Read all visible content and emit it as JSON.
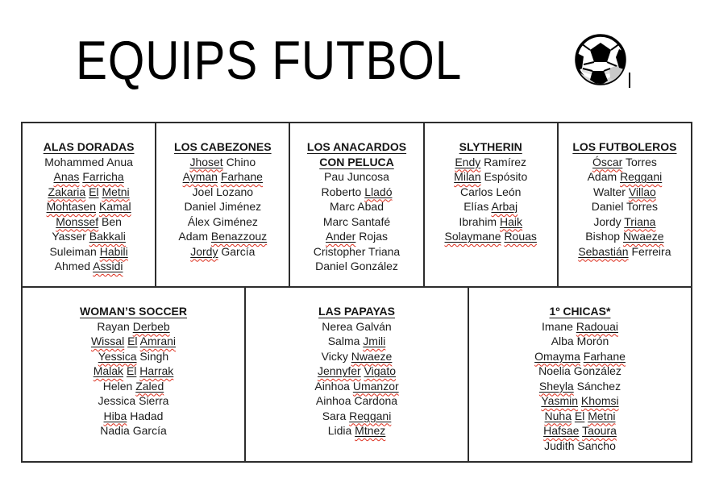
{
  "header": {
    "title": "EQUIPS FUTBOL",
    "ball_icon": "soccer-ball-icon"
  },
  "colors": {
    "text": "#1c1c1c",
    "border": "#2d2d2d",
    "underline": "#111111",
    "squiggle": "#dd2d1c",
    "ball_shading": "#cccccc"
  },
  "teams": [
    {
      "id": "alas-doradas",
      "row": 1,
      "name": "ALAS DORADAS",
      "players": [
        [
          {
            "w": "Mohammed"
          },
          {
            "w": "Anua"
          }
        ],
        [
          {
            "w": "Anas",
            "m": "us"
          },
          {
            "w": "Farricha",
            "m": "us"
          }
        ],
        [
          {
            "w": "Zakaria",
            "m": "us"
          },
          {
            "w": "El",
            "m": "u"
          },
          {
            "w": "Metni",
            "m": "us"
          }
        ],
        [
          {
            "w": "Mohtasen",
            "m": "us"
          },
          {
            "w": "Kamal",
            "m": "us"
          }
        ],
        [
          {
            "w": "Monssef",
            "m": "us"
          },
          {
            "w": "Ben"
          }
        ],
        [
          {
            "w": "Yasser"
          },
          {
            "w": "Bakkali",
            "m": "us"
          }
        ],
        [
          {
            "w": "Suleiman"
          },
          {
            "w": "Habili",
            "m": "us"
          }
        ],
        [
          {
            "w": "Ahmed"
          },
          {
            "w": "Assidi",
            "m": "us"
          }
        ]
      ]
    },
    {
      "id": "los-cabezones",
      "row": 1,
      "name": "LOS CABEZONES",
      "players": [
        [
          {
            "w": "Jhoset",
            "m": "us"
          },
          {
            "w": "Chino"
          }
        ],
        [
          {
            "w": "Ayman",
            "m": "us"
          },
          {
            "w": "Farhane",
            "m": "us"
          }
        ],
        [
          {
            "w": "Joel"
          },
          {
            "w": "Lozano"
          }
        ],
        [
          {
            "w": "Daniel"
          },
          {
            "w": "Jiménez"
          }
        ],
        [
          {
            "w": "Álex"
          },
          {
            "w": "Giménez"
          }
        ],
        [
          {
            "w": "Adam"
          },
          {
            "w": "Benazzouz",
            "m": "us"
          }
        ],
        [
          {
            "w": "Jordy",
            "m": "us"
          },
          {
            "w": "García"
          }
        ]
      ]
    },
    {
      "id": "los-anacardos-con-peluca",
      "row": 1,
      "name": "LOS ANACARDOS CON PELUCA",
      "players": [
        [
          {
            "w": "Pau"
          },
          {
            "w": "Juncosa"
          }
        ],
        [
          {
            "w": "Roberto"
          },
          {
            "w": "Lladó",
            "m": "us"
          }
        ],
        [
          {
            "w": "Marc"
          },
          {
            "w": "Abad"
          }
        ],
        [
          {
            "w": "Marc"
          },
          {
            "w": "Santafé"
          }
        ],
        [
          {
            "w": "Ander",
            "m": "us"
          },
          {
            "w": "Rojas"
          }
        ],
        [
          {
            "w": "Cristopher"
          },
          {
            "w": "Triana"
          }
        ],
        [
          {
            "w": "Daniel"
          },
          {
            "w": "González"
          }
        ]
      ]
    },
    {
      "id": "slytherin",
      "row": 1,
      "name": "SLYTHERIN",
      "players": [
        [
          {
            "w": "Endy",
            "m": "us"
          },
          {
            "w": "Ramírez"
          }
        ],
        [
          {
            "w": "Milan",
            "m": "us"
          },
          {
            "w": "Espósito"
          }
        ],
        [
          {
            "w": "Carlos"
          },
          {
            "w": "León"
          }
        ],
        [
          {
            "w": "Elías"
          },
          {
            "w": "Arbaj",
            "m": "us"
          }
        ],
        [
          {
            "w": "Ibrahim"
          },
          {
            "w": "Haik",
            "m": "us"
          }
        ],
        [
          {
            "w": "Solaymane",
            "m": "us"
          },
          {
            "w": "Rouas",
            "m": "us"
          }
        ]
      ]
    },
    {
      "id": "los-futboleros",
      "row": 1,
      "name": "LOS FUTBOLEROS",
      "players": [
        [
          {
            "w": "Óscar",
            "m": "us"
          },
          {
            "w": "Torres"
          }
        ],
        [
          {
            "w": "Adam"
          },
          {
            "w": "Reggani",
            "m": "us"
          }
        ],
        [
          {
            "w": "Walter"
          },
          {
            "w": "Villao",
            "m": "us"
          }
        ],
        [
          {
            "w": "Daniel"
          },
          {
            "w": "Torres"
          }
        ],
        [
          {
            "w": "Jordy"
          },
          {
            "w": "Triana",
            "m": "us"
          }
        ],
        [
          {
            "w": "Bishop"
          },
          {
            "w": "Nwaeze",
            "m": "us"
          }
        ],
        [
          {
            "w": "Sebastián",
            "m": "us"
          },
          {
            "w": "Ferreira"
          }
        ]
      ]
    },
    {
      "id": "womans-soccer",
      "row": 2,
      "name": "WOMAN’S SOCCER",
      "players": [
        [
          {
            "w": "Rayan"
          },
          {
            "w": "Derbeb",
            "m": "us"
          }
        ],
        [
          {
            "w": "Wissal",
            "m": "us"
          },
          {
            "w": "El",
            "m": "u"
          },
          {
            "w": "Amrani",
            "m": "us"
          }
        ],
        [
          {
            "w": "Yessica",
            "m": "us"
          },
          {
            "w": "Singh"
          }
        ],
        [
          {
            "w": "Malak",
            "m": "us"
          },
          {
            "w": "El",
            "m": "u"
          },
          {
            "w": "Harrak",
            "m": "us"
          }
        ],
        [
          {
            "w": "Helen"
          },
          {
            "w": "Zaled",
            "m": "us"
          }
        ],
        [
          {
            "w": "Jessica"
          },
          {
            "w": "Sierra"
          }
        ],
        [
          {
            "w": "Hiba",
            "m": "us"
          },
          {
            "w": "Hadad"
          }
        ],
        [
          {
            "w": "Nadia"
          },
          {
            "w": "García"
          }
        ]
      ]
    },
    {
      "id": "las-papayas",
      "row": 2,
      "name": "LAS PAPAYAS",
      "players": [
        [
          {
            "w": "Nerea"
          },
          {
            "w": "Galván"
          }
        ],
        [
          {
            "w": "Salma"
          },
          {
            "w": "Jmili",
            "m": "us"
          }
        ],
        [
          {
            "w": "Vicky"
          },
          {
            "w": "Nwaeze",
            "m": "us"
          }
        ],
        [
          {
            "w": "Jennyfer",
            "m": "us"
          },
          {
            "w": "Vigato",
            "m": "us"
          }
        ],
        [
          {
            "w": "Ainhoa"
          },
          {
            "w": "Umanzor",
            "m": "us"
          }
        ],
        [
          {
            "w": "Ainhoa"
          },
          {
            "w": "Cardona"
          }
        ],
        [
          {
            "w": "Sara"
          },
          {
            "w": "Reggani",
            "m": "us"
          }
        ],
        [
          {
            "w": "Lidia"
          },
          {
            "w": "Mtnez",
            "m": "us"
          }
        ]
      ]
    },
    {
      "id": "1o-chicas",
      "row": 2,
      "name": "1º CHICAS*",
      "players": [
        [
          {
            "w": "Imane"
          },
          {
            "w": "Radouai",
            "m": "us"
          }
        ],
        [
          {
            "w": "Alba"
          },
          {
            "w": "Morón"
          }
        ],
        [
          {
            "w": "Omayma",
            "m": "us"
          },
          {
            "w": "Farhane",
            "m": "us"
          }
        ],
        [
          {
            "w": "Noelia"
          },
          {
            "w": "González"
          }
        ],
        [
          {
            "w": "Sheyla",
            "m": "us"
          },
          {
            "w": "Sánchez"
          }
        ],
        [
          {
            "w": "Yasmin",
            "m": "us"
          },
          {
            "w": "Khomsi",
            "m": "us"
          }
        ],
        [
          {
            "w": "Nuha",
            "m": "us"
          },
          {
            "w": "El",
            "m": "u"
          },
          {
            "w": "Metni",
            "m": "us"
          }
        ],
        [
          {
            "w": "Hafsae",
            "m": "us"
          },
          {
            "w": "Taoura",
            "m": "us"
          }
        ],
        [
          {
            "w": "Judith"
          },
          {
            "w": "Sancho"
          }
        ]
      ]
    }
  ]
}
